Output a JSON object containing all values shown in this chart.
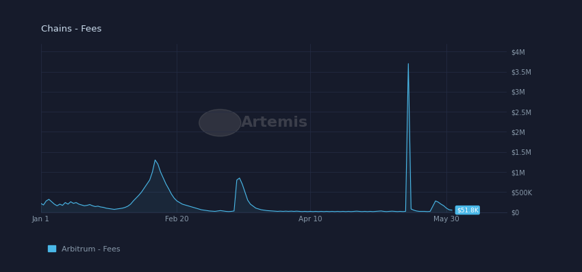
{
  "title": "Chains - Fees",
  "legend_label": "Arbitrum - Fees",
  "bg_color": "#161b2b",
  "plot_bg_color": "#161b2b",
  "line_color": "#4ab8e8",
  "grid_color": "#252d45",
  "text_color": "#8899aa",
  "title_color": "#ccddee",
  "ytick_values": [
    0,
    500000,
    1000000,
    1500000,
    2000000,
    2500000,
    3000000,
    3500000,
    4000000
  ],
  "ytick_labels": [
    "$0",
    "$500K",
    "$1M",
    "$1.5M",
    "$2M",
    "$2.5M",
    "$3M",
    "$3.5M",
    "$4M"
  ],
  "ylim": [
    0,
    4200000
  ],
  "xlim_days": 171,
  "watermark_text": "Artemis",
  "annotation_text": "$51.8K",
  "annotation_color": "#4ab8e8",
  "data_y": [
    220000,
    180000,
    280000,
    320000,
    260000,
    200000,
    160000,
    200000,
    170000,
    240000,
    200000,
    260000,
    220000,
    240000,
    200000,
    180000,
    160000,
    170000,
    190000,
    160000,
    140000,
    150000,
    130000,
    120000,
    100000,
    90000,
    80000,
    70000,
    80000,
    90000,
    100000,
    120000,
    150000,
    200000,
    280000,
    350000,
    420000,
    500000,
    600000,
    700000,
    800000,
    1000000,
    1300000,
    1200000,
    1000000,
    850000,
    700000,
    580000,
    450000,
    350000,
    280000,
    240000,
    200000,
    180000,
    160000,
    140000,
    120000,
    100000,
    80000,
    60000,
    50000,
    40000,
    30000,
    25000,
    20000,
    30000,
    40000,
    30000,
    20000,
    15000,
    20000,
    30000,
    800000,
    850000,
    700000,
    500000,
    300000,
    200000,
    150000,
    100000,
    80000,
    60000,
    50000,
    40000,
    35000,
    30000,
    25000,
    20000,
    25000,
    20000,
    25000,
    20000,
    25000,
    20000,
    25000,
    20000,
    15000,
    20000,
    15000,
    20000,
    15000,
    20000,
    15000,
    20000,
    15000,
    20000,
    15000,
    20000,
    15000,
    20000,
    15000,
    20000,
    15000,
    20000,
    15000,
    20000,
    25000,
    20000,
    15000,
    20000,
    15000,
    20000,
    15000,
    20000,
    25000,
    30000,
    20000,
    15000,
    20000,
    25000,
    20000,
    15000,
    20000,
    15000,
    20000,
    3700000,
    80000,
    50000,
    30000,
    20000,
    20000,
    20000,
    15000,
    20000,
    150000,
    280000,
    250000,
    200000,
    160000,
    100000,
    60000,
    51800
  ]
}
